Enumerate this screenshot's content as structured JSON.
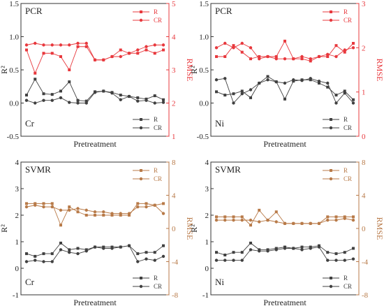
{
  "chart_data": [
    {
      "type": "line",
      "title": "PCR",
      "metal": "Cr",
      "xlabel": "Pretreatment",
      "ylabel_left": "R²",
      "ylabel_right": "RMSE",
      "ylim_left": [
        -0.5,
        1.5
      ],
      "yticks_left": [
        "-0.5",
        "0.0",
        "0.5",
        "1.0",
        "1.5"
      ],
      "ylim_right": [
        1,
        5
      ],
      "yticks_right": [
        "1",
        "2",
        "3",
        "4",
        "5"
      ],
      "colors": {
        "left": "#404040",
        "right": "#e8383d"
      },
      "legend_right": [
        "R",
        "CR"
      ],
      "legend_left": [
        "R",
        "CR"
      ],
      "series_left": [
        {
          "name": "R",
          "values": [
            0.12,
            0.36,
            0.14,
            0.13,
            0.18,
            0.32,
            0.04,
            0.03,
            0.17,
            0.18,
            0.16,
            0.12,
            0.1,
            0.08,
            0.06,
            0.11,
            0.05
          ]
        },
        {
          "name": "CR",
          "values": [
            0.04,
            0.0,
            0.04,
            0.04,
            0.08,
            0.01,
            0.0,
            0.0,
            0.16,
            0.18,
            0.15,
            0.05,
            0.1,
            0.03,
            0.04,
            0.0,
            0.01
          ]
        }
      ],
      "series_right": [
        {
          "name": "R",
          "values": [
            3.6,
            2.9,
            3.5,
            3.5,
            3.4,
            3.0,
            3.7,
            3.7,
            3.3,
            3.3,
            3.4,
            3.6,
            3.5,
            3.5,
            3.6,
            3.5,
            3.6
          ]
        },
        {
          "name": "CR",
          "values": [
            3.75,
            3.8,
            3.75,
            3.75,
            3.75,
            3.75,
            3.8,
            3.8,
            3.3,
            3.3,
            3.4,
            3.4,
            3.5,
            3.6,
            3.7,
            3.75,
            3.75
          ]
        }
      ]
    },
    {
      "type": "line",
      "title": "PCR",
      "metal": "Ni",
      "xlabel": "Pretreatment",
      "ylabel_left": "R²",
      "ylabel_right": "RMSE",
      "ylim_left": [
        -0.5,
        1.5
      ],
      "yticks_left": [
        "-0.5",
        "0.0",
        "0.5",
        "1.0",
        "1.5"
      ],
      "ylim_right": [
        0,
        3
      ],
      "yticks_right": [
        "0",
        "1",
        "2",
        "3"
      ],
      "colors": {
        "left": "#404040",
        "right": "#e8383d"
      },
      "legend_right": [
        "R",
        "CR"
      ],
      "legend_left": [
        "R",
        "CR"
      ],
      "series_left": [
        {
          "name": "R",
          "values": [
            0.17,
            0.12,
            0.14,
            0.18,
            0.08,
            0.3,
            0.4,
            0.32,
            0.06,
            0.33,
            0.35,
            0.35,
            0.3,
            0.24,
            0.12,
            0.18,
            0.05
          ]
        },
        {
          "name": "CR",
          "values": [
            0.35,
            0.37,
            0.0,
            0.14,
            0.2,
            0.3,
            0.35,
            0.32,
            0.3,
            0.35,
            0.34,
            0.37,
            0.33,
            0.3,
            0.0,
            0.15,
            0.0
          ]
        }
      ],
      "series_right": [
        {
          "name": "R",
          "values": [
            1.8,
            1.8,
            2.05,
            1.9,
            1.75,
            1.8,
            1.8,
            1.8,
            2.15,
            1.75,
            1.75,
            1.7,
            1.8,
            1.8,
            2.05,
            1.9,
            2.1
          ]
        },
        {
          "name": "CR",
          "values": [
            2.0,
            2.1,
            2.0,
            2.1,
            2.0,
            1.75,
            1.8,
            1.75,
            1.75,
            1.75,
            1.8,
            1.75,
            1.8,
            1.85,
            1.8,
            1.95,
            2.0
          ]
        }
      ]
    },
    {
      "type": "line",
      "title": "SVMR",
      "metal": "Cr",
      "xlabel": "Pretreatment",
      "ylabel_left": "R²",
      "ylabel_right": "RMSE",
      "ylim_left": [
        -1,
        4
      ],
      "yticks_left": [
        "-1",
        "0",
        "1",
        "2",
        "3",
        "4"
      ],
      "ylim_right": [
        -8,
        8
      ],
      "yticks_right": [
        "-8",
        "-4",
        "0",
        "4",
        "8"
      ],
      "colors": {
        "left": "#404040",
        "right": "#b87a48"
      },
      "legend_right": [
        "R",
        "CR"
      ],
      "legend_left": [
        "R",
        "CR"
      ],
      "series_left": [
        {
          "name": "R",
          "values": [
            0.55,
            0.45,
            0.55,
            0.55,
            0.95,
            0.7,
            0.75,
            0.7,
            0.8,
            0.8,
            0.8,
            0.8,
            0.85,
            0.55,
            0.6,
            0.6,
            0.85
          ]
        },
        {
          "name": "CR",
          "values": [
            0.25,
            0.3,
            0.25,
            0.25,
            0.7,
            0.6,
            0.55,
            0.65,
            0.8,
            0.75,
            0.75,
            0.8,
            0.85,
            0.25,
            0.35,
            0.3,
            0.45
          ]
        }
      ],
      "series_right": [
        {
          "name": "R",
          "values": [
            3.0,
            3.0,
            3.0,
            3.0,
            0.4,
            2.6,
            2.0,
            1.6,
            1.6,
            1.6,
            1.6,
            1.6,
            1.6,
            3.0,
            3.0,
            2.8,
            3.0
          ]
        },
        {
          "name": "CR",
          "values": [
            2.6,
            2.8,
            2.6,
            2.6,
            2.2,
            2.2,
            2.4,
            2.2,
            2.0,
            2.0,
            1.8,
            1.8,
            1.8,
            2.6,
            2.6,
            2.8,
            1.8
          ]
        }
      ]
    },
    {
      "type": "line",
      "title": "SVMR",
      "metal": "Ni",
      "xlabel": "Pretreatment",
      "ylabel_left": "R²",
      "ylabel_right": "RMSE",
      "ylim_left": [
        -1,
        4
      ],
      "yticks_left": [
        "-1",
        "0",
        "1",
        "2",
        "3",
        "4"
      ],
      "ylim_right": [
        -8,
        8
      ],
      "yticks_right": [
        "-8",
        "-4",
        "0",
        "4",
        "8"
      ],
      "colors": {
        "left": "#404040",
        "right": "#b87a48"
      },
      "legend_right": [
        "R",
        "CR"
      ],
      "legend_left": [
        "R",
        "CR"
      ],
      "series_left": [
        {
          "name": "R",
          "values": [
            0.6,
            0.5,
            0.6,
            0.6,
            0.95,
            0.7,
            0.7,
            0.75,
            0.8,
            0.75,
            0.8,
            0.8,
            0.85,
            0.6,
            0.55,
            0.6,
            0.75
          ]
        },
        {
          "name": "CR",
          "values": [
            0.3,
            0.3,
            0.3,
            0.3,
            0.7,
            0.65,
            0.65,
            0.7,
            0.75,
            0.75,
            0.7,
            0.75,
            0.8,
            0.3,
            0.3,
            0.3,
            0.35
          ]
        }
      ],
      "series_right": [
        {
          "name": "R",
          "values": [
            1.4,
            1.4,
            1.4,
            1.4,
            0.4,
            2.2,
            1.0,
            2.0,
            0.6,
            0.6,
            0.6,
            0.6,
            0.6,
            1.4,
            1.4,
            1.4,
            1.4
          ]
        },
        {
          "name": "CR",
          "values": [
            1.0,
            1.0,
            1.0,
            1.0,
            1.0,
            0.8,
            1.0,
            0.8,
            0.6,
            0.6,
            0.6,
            0.6,
            0.6,
            1.0,
            1.0,
            1.2,
            1.0
          ]
        }
      ]
    }
  ]
}
